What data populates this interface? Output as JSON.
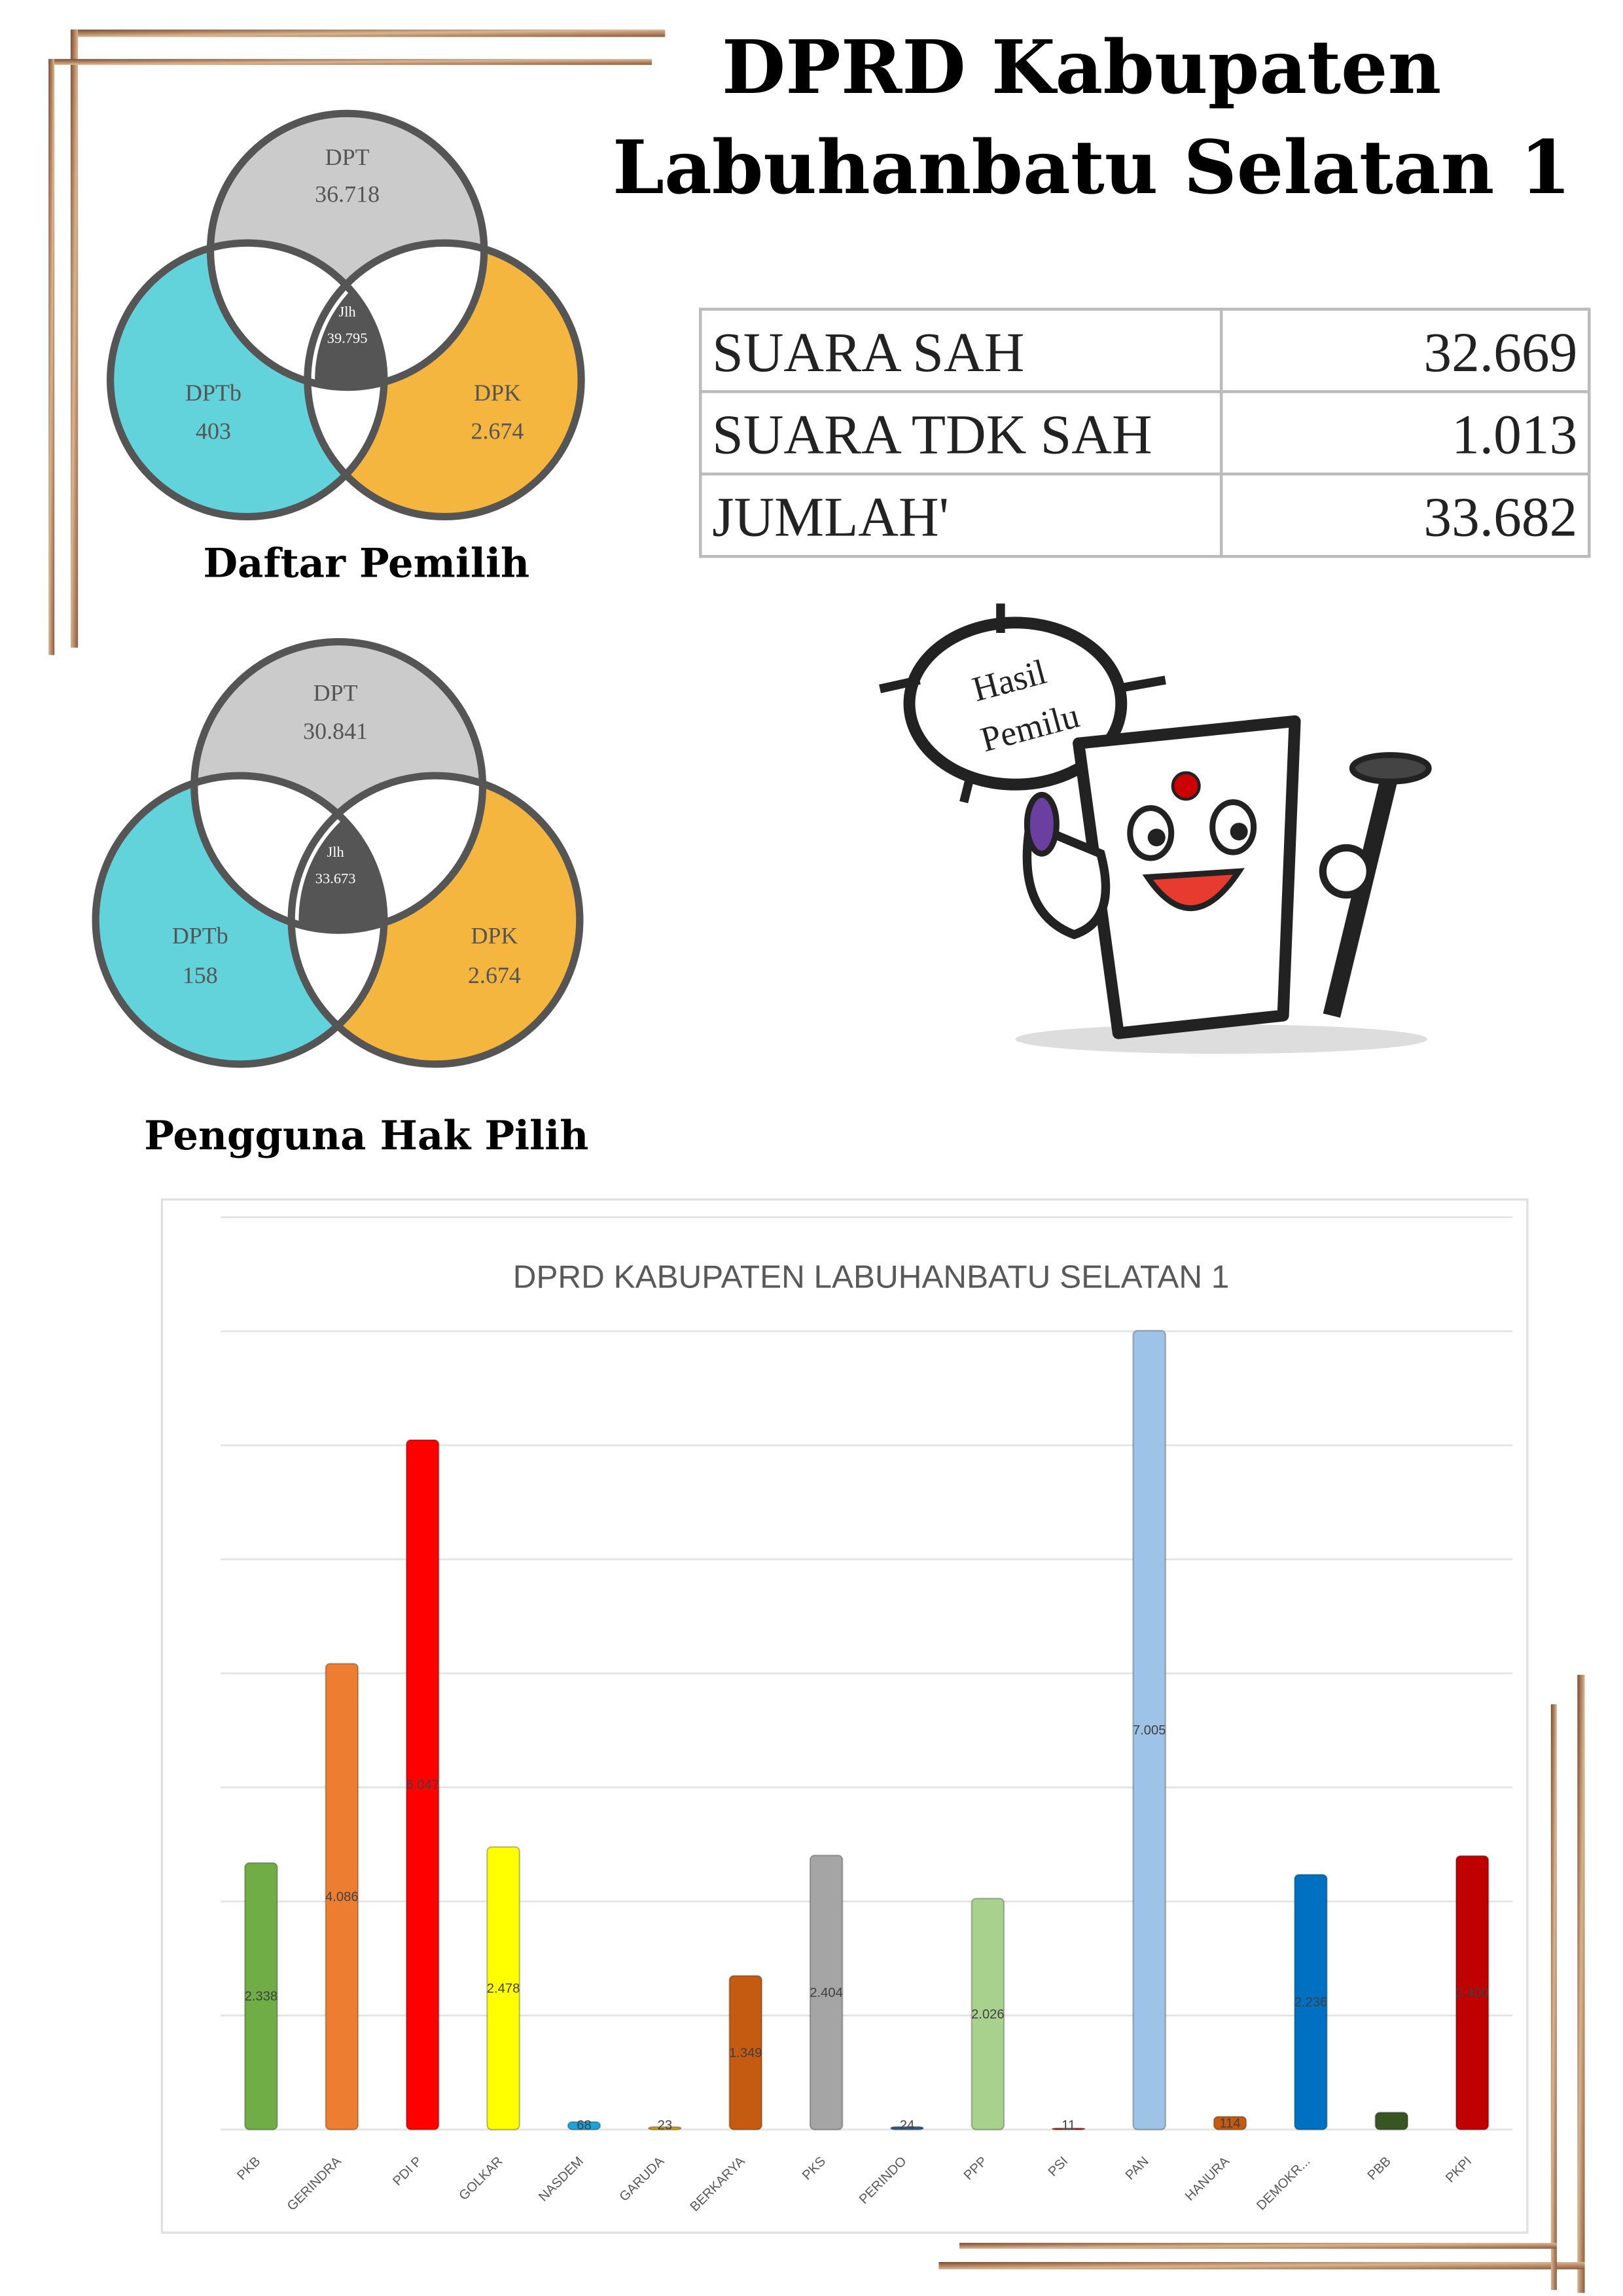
{
  "header": {
    "title_lines": [
      "DPRD Kabupaten",
      "Labuhanbatu Selatan 1"
    ]
  },
  "venn_diagrams": [
    {
      "caption": "Daftar Pemilih",
      "sets": [
        {
          "label": "DPT",
          "value": "36.718"
        },
        {
          "label": "DPTb",
          "value": "403"
        },
        {
          "label": "DPK",
          "value": "2.674"
        }
      ],
      "center": {
        "label": "Jlh",
        "value": "39.795"
      }
    },
    {
      "caption": "Pengguna Hak Pilih",
      "sets": [
        {
          "label": "DPT",
          "value": "30.841"
        },
        {
          "label": "DPTb",
          "value": "158"
        },
        {
          "label": "DPK",
          "value": "2.674"
        }
      ],
      "center": {
        "label": "Jlh",
        "value": "33.673"
      }
    }
  ],
  "table": {
    "rows": [
      [
        "SUARA SAH",
        "32.669"
      ],
      [
        "SUARA TDK SAH",
        "1.013"
      ],
      [
        "JUMLAH'",
        "33.682"
      ]
    ]
  },
  "sticker": {
    "lines": [
      "Hasil",
      "Pemilu"
    ]
  },
  "chart_data": {
    "type": "bar",
    "title": "DPRD KABUPATEN LABUHANBATU SELATAN 1",
    "categories": [
      "PKB",
      "GERINDRA",
      "PDI P",
      "GOLKAR",
      "NASDEM",
      "GARUDA",
      "BERKARYA",
      "PKS",
      "PERINDO",
      "PPP",
      "PSI",
      "PAN",
      "HANURA",
      "DEMOKR...",
      "PBB",
      "PKPI"
    ],
    "values": [
      2338,
      4086,
      6047,
      2478,
      68,
      23,
      1349,
      2404,
      24,
      2026,
      11,
      7005,
      114,
      2236,
      150,
      2400
    ],
    "value_labels": [
      "2.338",
      "4.086",
      "6.047",
      "2.478",
      "68",
      "23",
      "1.349",
      "2.404",
      "24",
      "2.026",
      "11",
      "7.005",
      "114",
      "2.236",
      null,
      "2.400"
    ],
    "colors": [
      "#70ad47",
      "#ed7d31",
      "#ff0000",
      "#ffff00",
      "#1ca3dc",
      "#d4a20c",
      "#c55a11",
      "#a5a5a5",
      "#255e91",
      "#a9d18e",
      "#c00000",
      "#9dc3e6",
      "#c55a11",
      "#0070c0",
      "#375623",
      "#c00000"
    ],
    "ylim": [
      0,
      8000
    ],
    "yticks": [
      0,
      1000,
      2000,
      3000,
      4000,
      5000,
      6000,
      7000,
      8000
    ],
    "grid": true
  }
}
